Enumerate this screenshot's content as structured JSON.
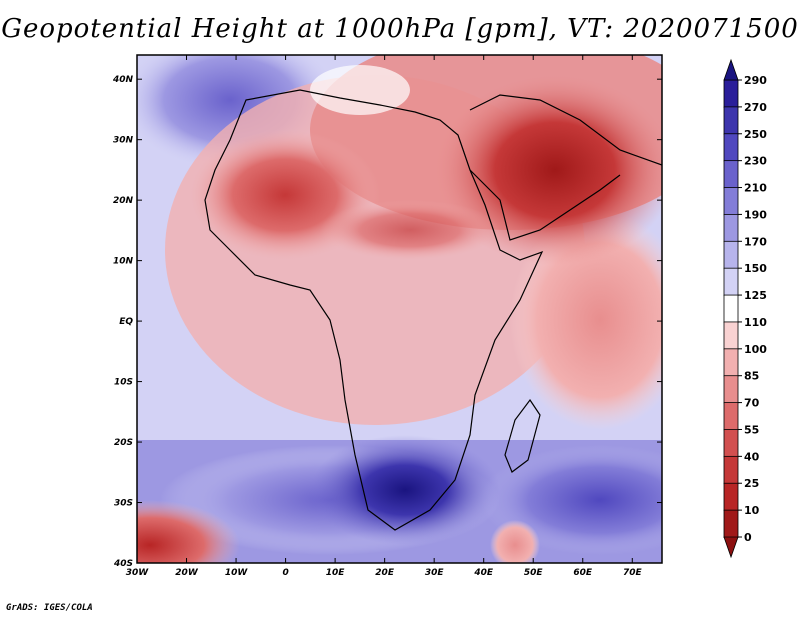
{
  "title": "Geopotential Height at 1000hPa [gpm], VT: 2020071500",
  "credit": "GrADS: IGES/COLA",
  "map": {
    "lat_labels": [
      "40N",
      "30N",
      "20N",
      "10N",
      "EQ",
      "10S",
      "20S",
      "30S",
      "40S"
    ],
    "lon_labels": [
      "30W",
      "20W",
      "10W",
      "0",
      "10E",
      "20E",
      "30E",
      "40E",
      "50E",
      "60E",
      "70E"
    ],
    "lat_range": [
      -40,
      44
    ],
    "lon_range": [
      -30,
      76
    ]
  },
  "colorbar": {
    "labels": [
      "290",
      "270",
      "250",
      "230",
      "210",
      "190",
      "170",
      "150",
      "125",
      "110",
      "100",
      "85",
      "70",
      "55",
      "40",
      "25",
      "10",
      "0"
    ],
    "colors": [
      "#2a1e9a",
      "#3d35ad",
      "#5048bf",
      "#6a62cc",
      "#837dd8",
      "#9d98e2",
      "#b7b4ec",
      "#d3d2f5",
      "#ffffff",
      "#f9d2d2",
      "#f2b0b0",
      "#e88e8e",
      "#dd6b6b",
      "#d25050",
      "#c53838",
      "#b82525",
      "#a01919"
    ],
    "max_color": "#1a1480",
    "min_color": "#8c1010"
  },
  "colors": {
    "background": "#ffffff",
    "border": "#000000"
  }
}
